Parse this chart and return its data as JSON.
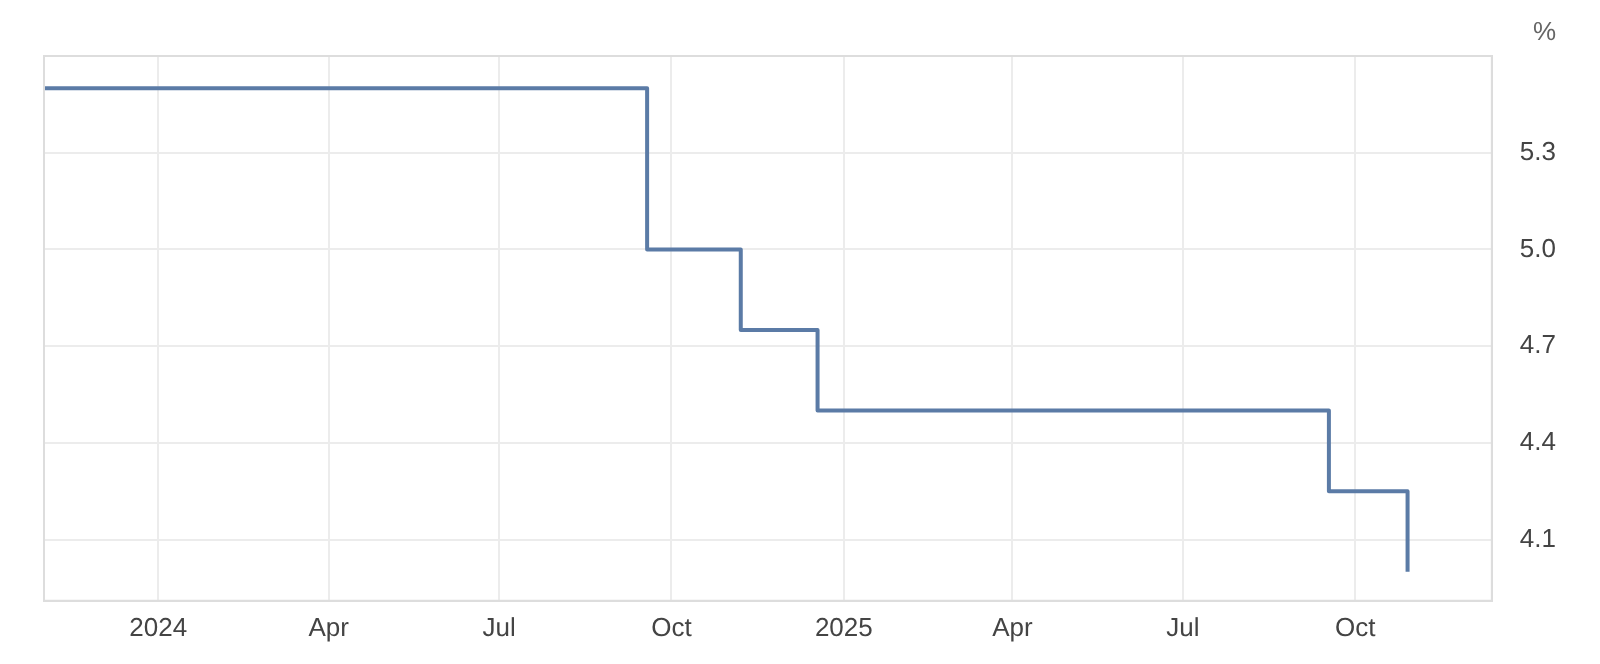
{
  "chart_data": {
    "type": "step",
    "ylabel": "%",
    "x": [
      "2023-11-01",
      "2024-09-18",
      "2024-11-07",
      "2024-12-18",
      "2025-09-17",
      "2025-10-29"
    ],
    "series": [
      {
        "color": "#5b7ba6",
        "values": [
          5.5,
          5.0,
          4.75,
          4.5,
          4.25,
          4.0
        ]
      }
    ],
    "xlim": [
      "2023-11-01",
      "2025-12-13"
    ],
    "xticks": [
      {
        "value": "2024-01",
        "label": "2024"
      },
      {
        "value": "2024-04",
        "label": "Apr"
      },
      {
        "value": "2024-07",
        "label": "Jul"
      },
      {
        "value": "2024-10",
        "label": "Oct"
      },
      {
        "value": "2025-01",
        "label": "2025"
      },
      {
        "value": "2025-04",
        "label": "Apr"
      },
      {
        "value": "2025-07",
        "label": "Jul"
      },
      {
        "value": "2025-10",
        "label": "Oct"
      }
    ],
    "ylim": [
      3.91,
      5.6
    ],
    "yticks": [
      4.1,
      4.4,
      4.7,
      {
        "value": 5.0,
        "label": "5.0"
      },
      5.3,
      {
        "value": 5.6,
        "label": null
      }
    ],
    "grid": true,
    "legend": false
  }
}
